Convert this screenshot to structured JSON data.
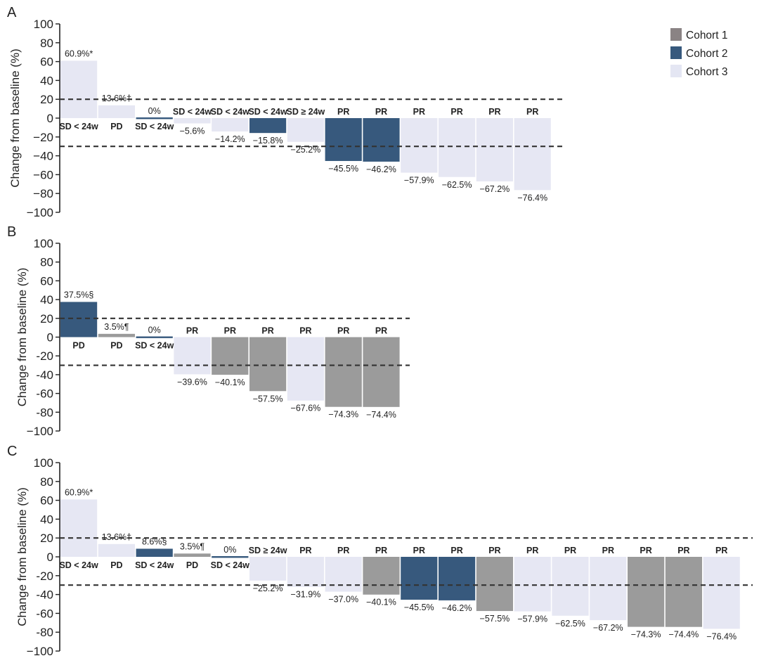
{
  "chart_data": {
    "type": "bar",
    "legend": {
      "placement": "top-right",
      "entries": [
        {
          "name": "Cohort 1",
          "color": "#8a8384"
        },
        {
          "name": "Cohort 2",
          "color": "#37597d"
        },
        {
          "name": "Cohort 3",
          "color": "#e4e6f3"
        }
      ]
    },
    "bar_colors": {
      "1": "#9b9b9b",
      "2": "#37597d",
      "3": "#e6e7f3"
    },
    "panels": [
      {
        "letter": "A",
        "ylabel": "Change from baseline (%)",
        "ylim": [
          -100,
          100
        ],
        "yticks": [
          "100",
          "80",
          "60",
          "40",
          "20",
          "0",
          "−20",
          "−40",
          "−60",
          "−80",
          "−100"
        ],
        "ref_lines": [
          20,
          -30
        ],
        "bars": [
          {
            "value": 60.9,
            "cohort": 3,
            "label": "60.9%*",
            "response": "SD < 24w"
          },
          {
            "value": 13.6,
            "cohort": 3,
            "label": "13.6%†",
            "response": "PD"
          },
          {
            "value": 0,
            "cohort": 2,
            "label": "0%",
            "response": "SD < 24w"
          },
          {
            "value": -5.6,
            "cohort": 3,
            "label": "−5.6%",
            "response": "SD < 24w"
          },
          {
            "value": -14.2,
            "cohort": 3,
            "label": "−14.2%",
            "response": "SD < 24w"
          },
          {
            "value": -15.8,
            "cohort": 2,
            "label": "−15.8%",
            "response": "SD < 24w"
          },
          {
            "value": -25.2,
            "cohort": 3,
            "label": "−25.2%",
            "response": "SD ≥ 24w"
          },
          {
            "value": -45.5,
            "cohort": 2,
            "label": "−45.5%",
            "response": "PR"
          },
          {
            "value": -46.2,
            "cohort": 2,
            "label": "−46.2%",
            "response": "PR"
          },
          {
            "value": -57.9,
            "cohort": 3,
            "label": "−57.9%",
            "response": "PR"
          },
          {
            "value": -62.5,
            "cohort": 3,
            "label": "−62.5%",
            "response": "PR"
          },
          {
            "value": -67.2,
            "cohort": 3,
            "label": "−67.2%",
            "response": "PR"
          },
          {
            "value": -76.4,
            "cohort": 3,
            "label": "−76.4%",
            "response": "PR"
          }
        ]
      },
      {
        "letter": "B",
        "ylabel": "Change from baseline (%)",
        "ylim": [
          -100,
          100
        ],
        "yticks": [
          "100",
          "80",
          "60",
          "40",
          "20",
          "0",
          "-20",
          "-40",
          "-60",
          "-80",
          "−100"
        ],
        "ref_lines": [
          20,
          -30
        ],
        "bars": [
          {
            "value": 37.5,
            "cohort": 2,
            "label": "37.5%§",
            "response": "PD"
          },
          {
            "value": 3.5,
            "cohort": 1,
            "label": "3.5%¶",
            "response": "PD"
          },
          {
            "value": 0,
            "cohort": 2,
            "label": "0%",
            "response": "SD < 24w"
          },
          {
            "value": -39.6,
            "cohort": 3,
            "label": "−39.6%",
            "response": "PR"
          },
          {
            "value": -40.1,
            "cohort": 1,
            "label": "−40.1%",
            "response": "PR"
          },
          {
            "value": -57.5,
            "cohort": 1,
            "label": "−57.5%",
            "response": "PR"
          },
          {
            "value": -67.6,
            "cohort": 3,
            "label": "−67.6%",
            "response": "PR"
          },
          {
            "value": -74.3,
            "cohort": 1,
            "label": "−74.3%",
            "response": "PR"
          },
          {
            "value": -74.4,
            "cohort": 1,
            "label": "−74.4%",
            "response": "PR"
          }
        ]
      },
      {
        "letter": "C",
        "ylabel": "Change from baseline (%)",
        "ylim": [
          -100,
          100
        ],
        "yticks": [
          "100",
          "80",
          "60",
          "40",
          "20",
          "0",
          "-20",
          "-40",
          "-60",
          "-80",
          "−100"
        ],
        "ref_lines": [
          20,
          -30
        ],
        "bars": [
          {
            "value": 60.9,
            "cohort": 3,
            "label": "60.9%*",
            "response": "SD < 24w"
          },
          {
            "value": 13.6,
            "cohort": 3,
            "label": "13.6%†",
            "response": "PD"
          },
          {
            "value": 8.6,
            "cohort": 2,
            "label": "8.6%§",
            "response": "SD < 24w"
          },
          {
            "value": 3.5,
            "cohort": 1,
            "label": "3.5%¶",
            "response": "PD"
          },
          {
            "value": 0,
            "cohort": 2,
            "label": "0%",
            "response": "SD < 24w"
          },
          {
            "value": -25.2,
            "cohort": 3,
            "label": "−25.2%",
            "response": "SD ≥ 24w"
          },
          {
            "value": -31.9,
            "cohort": 3,
            "label": "−31.9%",
            "response": "PR"
          },
          {
            "value": -37.0,
            "cohort": 3,
            "label": "−37.0%",
            "response": "PR"
          },
          {
            "value": -40.1,
            "cohort": 1,
            "label": "−40.1%",
            "response": "PR"
          },
          {
            "value": -45.5,
            "cohort": 2,
            "label": "−45.5%",
            "response": "PR"
          },
          {
            "value": -46.2,
            "cohort": 2,
            "label": "−46.2%",
            "response": "PR"
          },
          {
            "value": -57.5,
            "cohort": 1,
            "label": "−57.5%",
            "response": "PR"
          },
          {
            "value": -57.9,
            "cohort": 3,
            "label": "−57.9%",
            "response": "PR"
          },
          {
            "value": -62.5,
            "cohort": 3,
            "label": "−62.5%",
            "response": "PR"
          },
          {
            "value": -67.2,
            "cohort": 3,
            "label": "−67.2%",
            "response": "PR"
          },
          {
            "value": -74.3,
            "cohort": 1,
            "label": "−74.3%",
            "response": "PR"
          },
          {
            "value": -74.4,
            "cohort": 1,
            "label": "−74.4%",
            "response": "PR"
          },
          {
            "value": -76.4,
            "cohort": 3,
            "label": "−76.4%",
            "response": "PR"
          }
        ]
      }
    ]
  }
}
